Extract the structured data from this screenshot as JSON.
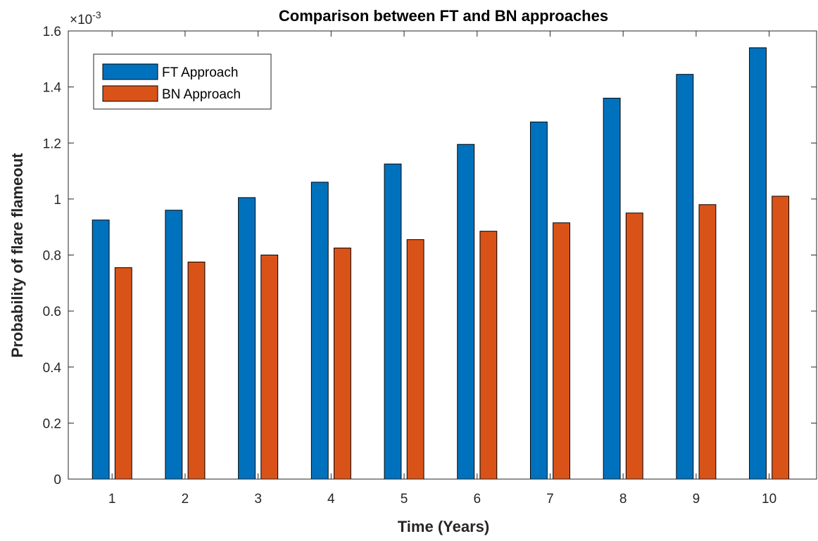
{
  "chart_data": {
    "type": "bar",
    "title": "Comparison between FT and BN approaches",
    "xlabel": "Time (Years)",
    "ylabel": "Probability of flare flameout",
    "y_exponent_base": "×10",
    "y_exponent_power": "-3",
    "categories": [
      "1",
      "2",
      "3",
      "4",
      "5",
      "6",
      "7",
      "8",
      "9",
      "10"
    ],
    "series": [
      {
        "name": "FT Approach",
        "color": "#0072BD",
        "values": [
          0.925,
          0.96,
          1.005,
          1.06,
          1.125,
          1.195,
          1.275,
          1.36,
          1.445,
          1.54
        ]
      },
      {
        "name": "BN Approach",
        "color": "#D95319",
        "values": [
          0.755,
          0.775,
          0.8,
          0.825,
          0.855,
          0.885,
          0.915,
          0.95,
          0.98,
          1.01
        ]
      }
    ],
    "ylim": [
      0,
      1.6
    ],
    "yticks": [
      "0",
      "0.2",
      "0.4",
      "0.6",
      "0.8",
      "1",
      "1.2",
      "1.4",
      "1.6"
    ],
    "legend_position": "top-left",
    "grid": false
  }
}
